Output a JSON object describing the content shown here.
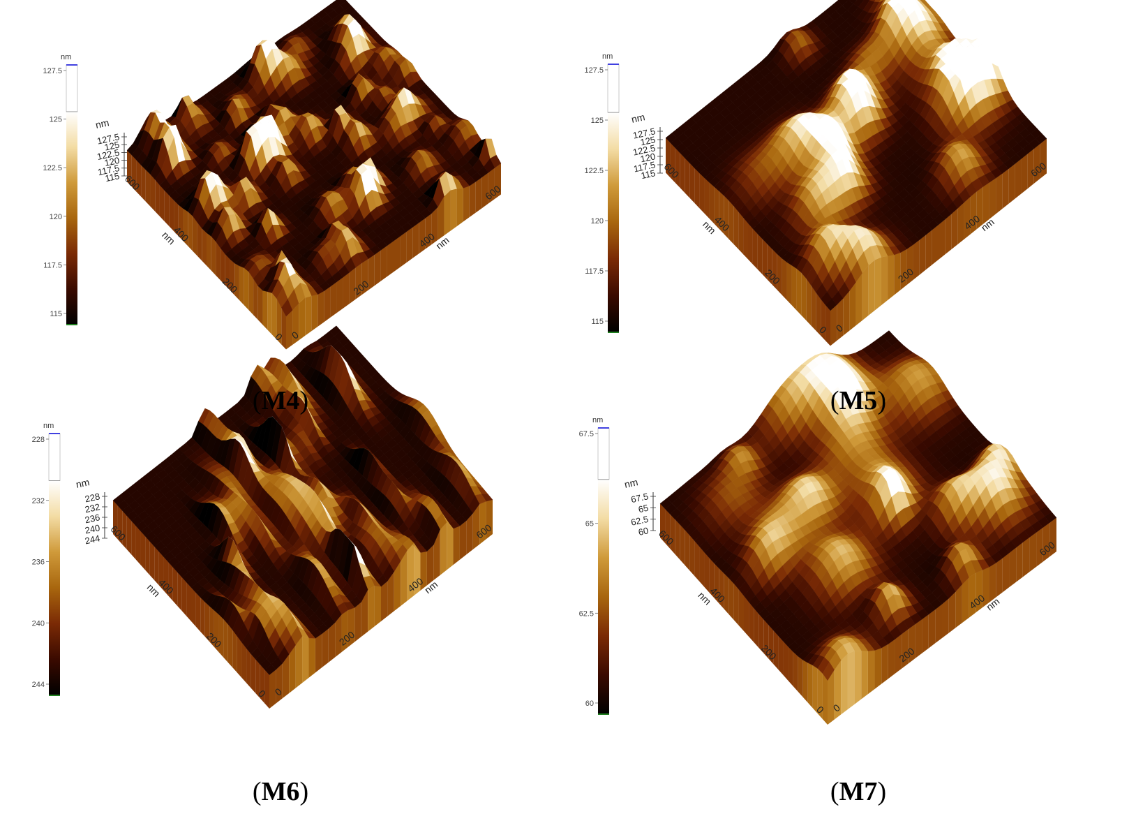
{
  "figure": {
    "panels": [
      {
        "id": "M4",
        "caption": "M4",
        "unit": "nm",
        "colorbar_ticks": [
          "127.5",
          "125",
          "122.5",
          "120",
          "117.5",
          "115"
        ],
        "z_ticks": [
          "127.5",
          "125",
          "122.5",
          "120",
          "117.5",
          "115"
        ],
        "axis_left_ticks": [
          "0",
          "200",
          "400",
          "600"
        ],
        "axis_right_ticks": [
          "0",
          "200",
          "400",
          "600"
        ],
        "axis_unit": "nm",
        "seed": 11,
        "style": "peaked"
      },
      {
        "id": "M5",
        "caption": "M5",
        "unit": "nm",
        "colorbar_ticks": [
          "127.5",
          "125",
          "122.5",
          "120",
          "117.5",
          "115"
        ],
        "z_ticks": [
          "127.5",
          "125",
          "122.5",
          "120",
          "117.5",
          "115"
        ],
        "axis_left_ticks": [
          "0",
          "200",
          "400",
          "600"
        ],
        "axis_right_ticks": [
          "0",
          "200",
          "400",
          "600"
        ],
        "axis_unit": "nm",
        "seed": 23,
        "style": "grainy"
      },
      {
        "id": "M6",
        "caption": "M6",
        "unit": "nm",
        "colorbar_ticks": [
          "228",
          "232",
          "236",
          "240",
          "244"
        ],
        "z_ticks": [
          "228",
          "232",
          "236",
          "240",
          "244"
        ],
        "axis_left_ticks": [
          "0",
          "200",
          "400",
          "600"
        ],
        "axis_right_ticks": [
          "0",
          "200",
          "400",
          "600"
        ],
        "axis_unit": "nm",
        "seed": 37,
        "style": "ridged"
      },
      {
        "id": "M7",
        "caption": "M7",
        "unit": "nm",
        "colorbar_ticks": [
          "67.5",
          "65",
          "62.5",
          "60"
        ],
        "z_ticks": [
          "67.5",
          "65",
          "62.5",
          "60"
        ],
        "axis_left_ticks": [
          "0",
          "200",
          "400",
          "600"
        ],
        "axis_right_ticks": [
          "0",
          "200",
          "400",
          "600"
        ],
        "axis_unit": "nm",
        "seed": 51,
        "style": "grainy"
      }
    ],
    "colormap": [
      "#000000",
      "#3a0a00",
      "#7a2a05",
      "#a8660e",
      "#cf9a3a",
      "#f3dca4",
      "#ffffff"
    ]
  }
}
